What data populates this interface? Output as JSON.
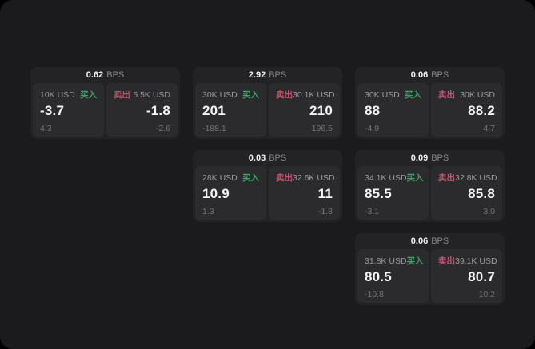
{
  "colors": {
    "page_bg": "#000000",
    "panel_bg": "#1b1b1d",
    "card_bg": "#232325",
    "cell_bg": "#2b2b2d",
    "text_primary": "#f2f2f3",
    "text_muted": "#9a9aa0",
    "text_dim": "#737378",
    "buy_green": "#3fa065",
    "sell_red": "#c9516b"
  },
  "labels": {
    "bps_suffix": "BPS",
    "buy": "买入",
    "sell": "卖出"
  },
  "cards": [
    {
      "bps": "0.62",
      "buy": {
        "amount": "10K USD",
        "value": "-3.7",
        "delta": "4.3"
      },
      "sell": {
        "amount": "5.5K USD",
        "value": "-1.8",
        "delta": "-2.6"
      }
    },
    {
      "bps": "2.92",
      "buy": {
        "amount": "30K USD",
        "value": "201",
        "delta": "-188.1"
      },
      "sell": {
        "amount": "30.1K USD",
        "value": "210",
        "delta": "196.5"
      }
    },
    {
      "bps": "0.06",
      "buy": {
        "amount": "30K USD",
        "value": "88",
        "delta": "-4.9"
      },
      "sell": {
        "amount": "30K USD",
        "value": "88.2",
        "delta": "4.7"
      }
    },
    {
      "bps": "0.03",
      "buy": {
        "amount": "28K USD",
        "value": "10.9",
        "delta": "1.3"
      },
      "sell": {
        "amount": "32.6K USD",
        "value": "11",
        "delta": "-1.8"
      }
    },
    {
      "bps": "0.09",
      "buy": {
        "amount": "34.1K USD",
        "value": "85.5",
        "delta": "-3.1"
      },
      "sell": {
        "amount": "32.8K USD",
        "value": "85.8",
        "delta": "3.0"
      }
    },
    {
      "bps": "0.06",
      "buy": {
        "amount": "31.8K USD",
        "value": "80.5",
        "delta": "-10.8"
      },
      "sell": {
        "amount": "39.1K USD",
        "value": "80.7",
        "delta": "10.2"
      }
    }
  ]
}
